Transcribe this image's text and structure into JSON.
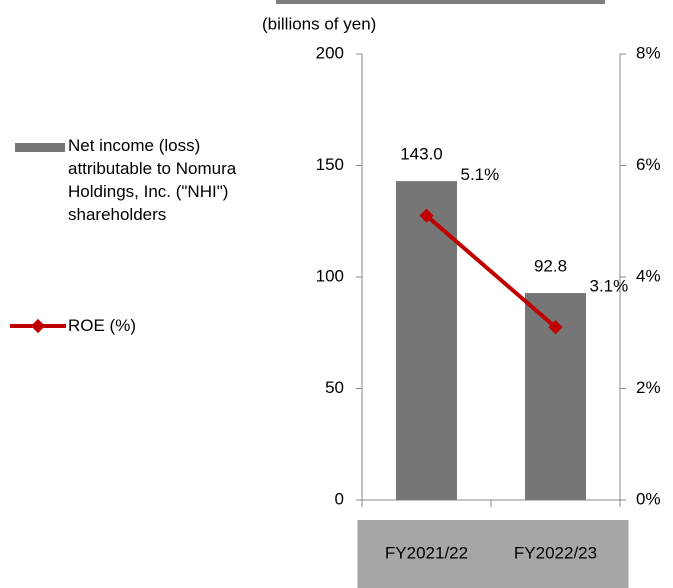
{
  "chart_data": {
    "type": "bar_line",
    "unit_label": "(billions of yen)",
    "categories": [
      "FY2021/22",
      "FY2022/23"
    ],
    "series": [
      {
        "name": "Net income (loss) attributable to Nomura Holdings, Inc. (\"NHI\") shareholders",
        "type": "bar",
        "color": "#767676",
        "values": [
          143,
          92.8
        ],
        "value_labels": [
          "143.0",
          "92.8"
        ]
      },
      {
        "name": "ROE (%)",
        "type": "line",
        "axis": "y2",
        "color": "#c00000",
        "values": [
          5.1,
          3.1
        ],
        "value_labels": [
          "5.1%",
          "3.1%"
        ]
      }
    ],
    "ylim": [
      0,
      200
    ],
    "yticks": [
      0,
      50,
      100,
      150,
      200
    ],
    "y2lim": [
      0,
      8
    ],
    "y2ticks": [
      {
        "value": 0,
        "label": "0%"
      },
      {
        "value": 2,
        "label": "2%"
      },
      {
        "value": 4,
        "label": "4%"
      },
      {
        "value": 6,
        "label": "6%"
      },
      {
        "value": 8,
        "label": "8%"
      }
    ],
    "legend": "left"
  }
}
